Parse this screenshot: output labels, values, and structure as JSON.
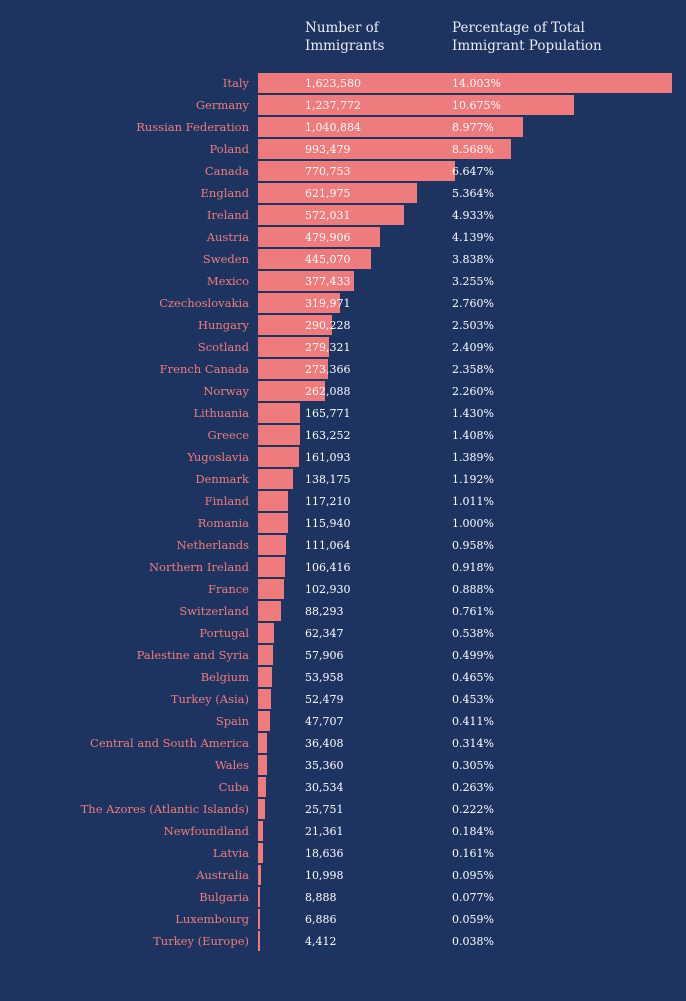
{
  "chart_data": {
    "type": "bar",
    "orientation": "horizontal",
    "title": "",
    "headers": {
      "number": "Number of\nImmigrants",
      "percentage": "Percentage of Total\nImmigrant Population"
    },
    "bar_color": "#f07b7d",
    "background_color": "#1d3461",
    "categories": [
      "Italy",
      "Germany",
      "Russian Federation",
      "Poland",
      "Canada",
      "England",
      "Ireland",
      "Austria",
      "Sweden",
      "Mexico",
      "Czechoslovakia",
      "Hungary",
      "Scotland",
      "French Canada",
      "Norway",
      "Lithuania",
      "Greece",
      "Yugoslavia",
      "Denmark",
      "Finland",
      "Romania",
      "Netherlands",
      "Northern Ireland",
      "France",
      "Switzerland",
      "Portugal",
      "Palestine and Syria",
      "Belgium",
      "Turkey (Asia)",
      "Spain",
      "Central and South America",
      "Wales",
      "Cuba",
      "The Azores (Atlantic Islands)",
      "Newfoundland",
      "Latvia",
      "Australia",
      "Bulgaria",
      "Luxembourg",
      "Turkey (Europe)"
    ],
    "values": [
      1623580,
      1237772,
      1040884,
      993479,
      770753,
      621975,
      572031,
      479906,
      445070,
      377433,
      319971,
      290228,
      279321,
      273366,
      262088,
      165771,
      163252,
      161093,
      138175,
      117210,
      115940,
      111064,
      106416,
      102930,
      88293,
      62347,
      57906,
      53958,
      52479,
      47707,
      36408,
      35360,
      30534,
      25751,
      21361,
      18636,
      10998,
      8888,
      6886,
      4412
    ],
    "value_labels": [
      "1,623,580",
      "1,237,772",
      "1,040,884",
      "993,479",
      "770,753",
      "621,975",
      "572,031",
      "479,906",
      "445,070",
      "377,433",
      "319,971",
      "290,228",
      "279,321",
      "273,366",
      "262,088",
      "165,771",
      "163,252",
      "161,093",
      "138,175",
      "117,210",
      "115,940",
      "111,064",
      "106,416",
      "102,930",
      "88,293",
      "62,347",
      "57,906",
      "53,958",
      "52,479",
      "47,707",
      "36,408",
      "35,360",
      "30,534",
      "25,751",
      "21,361",
      "18,636",
      "10,998",
      "8,888",
      "6,886",
      "4,412"
    ],
    "percentages": [
      "14.003%",
      "10.675%",
      "8.977%",
      "8.568%",
      "6.647%",
      "5.364%",
      "4.933%",
      "4.139%",
      "3.838%",
      "3.255%",
      "2.760%",
      "2.503%",
      "2.409%",
      "2.358%",
      "2.260%",
      "1.430%",
      "1.408%",
      "1.389%",
      "1.192%",
      "1.011%",
      "1.000%",
      "0.958%",
      "0.918%",
      "0.888%",
      "0.761%",
      "0.538%",
      "0.499%",
      "0.465%",
      "0.453%",
      "0.411%",
      "0.314%",
      "0.305%",
      "0.263%",
      "0.222%",
      "0.184%",
      "0.161%",
      "0.095%",
      "0.077%",
      "0.059%",
      "0.038%"
    ],
    "xlim": [
      0,
      1623580
    ],
    "grid": false,
    "legend": "none"
  }
}
